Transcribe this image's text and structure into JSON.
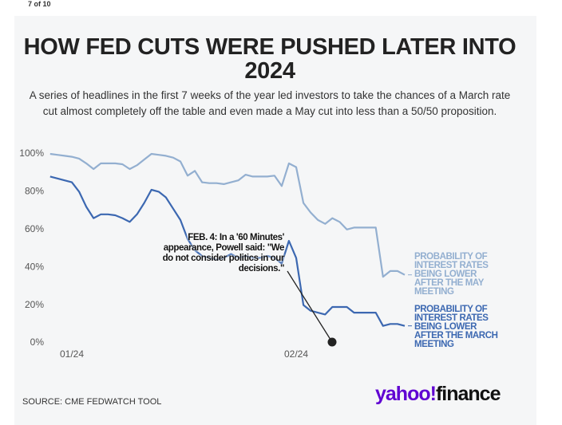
{
  "page_counter": "7 of 10",
  "chart_data": {
    "type": "line",
    "title": "HOW FED CUTS WERE PUSHED LATER INTO 2024",
    "subtitle": "A series of headlines in the first 7 weeks of the year led investors to take the chances of a March rate cut almost completely off the table and even made a May cut into less than a 50/50 proposition.",
    "categories": [
      null,
      null,
      null,
      "01/24",
      null,
      null,
      null,
      null,
      null,
      null,
      null,
      null,
      null,
      null,
      null,
      null,
      null,
      null,
      null,
      null,
      null,
      null,
      null,
      null,
      null,
      null,
      null,
      null,
      null,
      null,
      null,
      null,
      null,
      null,
      "02/24",
      null,
      null,
      null,
      null,
      null,
      null,
      null,
      null,
      null,
      null,
      null,
      null,
      null,
      null,
      null
    ],
    "series": [
      {
        "name": "PROBABILITY OF INTEREST RATES BEING LOWER AFTER THE MAY MEETING",
        "color": "#93afd0",
        "values": [
          100,
          99.5,
          99,
          98.5,
          97.5,
          95,
          92,
          95,
          95,
          95,
          94.5,
          92,
          94,
          97,
          100,
          99.5,
          99,
          98,
          96,
          88.5,
          91,
          85,
          84.5,
          84.5,
          84,
          85,
          86,
          89,
          88,
          88,
          88,
          88.5,
          83,
          95,
          93,
          74,
          69,
          65,
          63,
          66,
          64,
          60,
          61,
          61,
          61,
          61,
          35,
          38,
          38,
          36
        ]
      },
      {
        "name": "PROBABILITY OF INTEREST RATES BEING LOWER AFTER THE MARCH MEETING",
        "color": "#3c68b1",
        "values": [
          88,
          87,
          86,
          85,
          80,
          72,
          66,
          68,
          68,
          67.5,
          66,
          64,
          68,
          74,
          81,
          80,
          77,
          71,
          65,
          55,
          49,
          46,
          45,
          44,
          45,
          47,
          45,
          46,
          45,
          45,
          46,
          45,
          42,
          54,
          45,
          20,
          17,
          16,
          15,
          19,
          19,
          19,
          16,
          16,
          16,
          16,
          9,
          10,
          10,
          9
        ]
      }
    ],
    "ylim": [
      0,
      100
    ],
    "yticks": [
      {
        "value": 0,
        "label": "0%"
      },
      {
        "value": 20,
        "label": "20%"
      },
      {
        "value": 40,
        "label": "40%"
      },
      {
        "value": 60,
        "label": "60%"
      },
      {
        "value": 80,
        "label": "80%"
      },
      {
        "value": 100,
        "label": "100%"
      }
    ],
    "grid": false,
    "annotation": "FEB. 4: In a '60 Minutes' appearance, Powell said: \"We do not consider politics in our decisions.\"",
    "source": "SOURCE: CME FEDWATCH TOOL",
    "logo": [
      "yahoo!",
      "finance"
    ]
  }
}
